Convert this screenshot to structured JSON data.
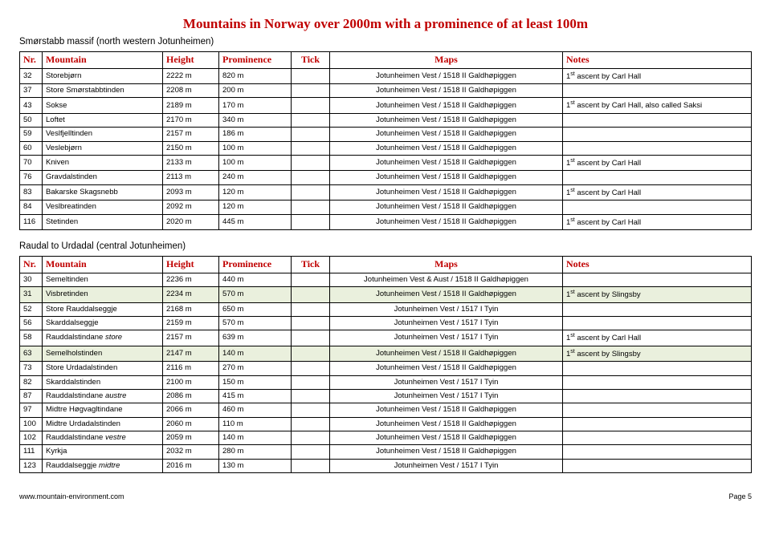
{
  "title": "Mountains in Norway over 2000m with a prominence of at least 100m",
  "sections": [
    {
      "heading": "Smørstabb massif (north western Jotunheimen)",
      "columns": [
        "Nr.",
        "Mountain",
        "Height",
        "Prominence",
        "Tick",
        "Maps",
        "Notes"
      ],
      "rows": [
        {
          "nr": "32",
          "mt": "Storebjørn",
          "ht": "2222 m",
          "pr": "820 m",
          "mp": "Jotunheimen Vest / 1518 II Galdhøpiggen",
          "nt": "1st ascent by Carl Hall"
        },
        {
          "nr": "37",
          "mt": "Store Smørstabbtinden",
          "ht": "2208 m",
          "pr": "200 m",
          "mp": "Jotunheimen Vest / 1518 II Galdhøpiggen",
          "nt": ""
        },
        {
          "nr": "43",
          "mt": "Sokse",
          "ht": "2189 m",
          "pr": "170 m",
          "mp": "Jotunheimen Vest / 1518 II Galdhøpiggen",
          "nt": "1st ascent by Carl Hall, also called Saksi"
        },
        {
          "nr": "50",
          "mt": "Loftet",
          "ht": "2170 m",
          "pr": "340 m",
          "mp": "Jotunheimen Vest / 1518 II Galdhøpiggen",
          "nt": ""
        },
        {
          "nr": "59",
          "mt": "Veslfjelltinden",
          "ht": "2157 m",
          "pr": "186 m",
          "mp": "Jotunheimen Vest / 1518 II Galdhøpiggen",
          "nt": ""
        },
        {
          "nr": "60",
          "mt": "Veslebjørn",
          "ht": "2150 m",
          "pr": "100 m",
          "mp": "Jotunheimen Vest / 1518 II Galdhøpiggen",
          "nt": ""
        },
        {
          "nr": "70",
          "mt": "Kniven",
          "ht": "2133 m",
          "pr": "100 m",
          "mp": "Jotunheimen Vest / 1518 II Galdhøpiggen",
          "nt": "1st ascent by Carl Hall"
        },
        {
          "nr": "76",
          "mt": "Gravdalstinden",
          "ht": "2113 m",
          "pr": "240 m",
          "mp": "Jotunheimen Vest / 1518 II Galdhøpiggen",
          "nt": ""
        },
        {
          "nr": "83",
          "mt": "Bakarske Skagsnebb",
          "ht": "2093 m",
          "pr": "120 m",
          "mp": "Jotunheimen Vest / 1518 II Galdhøpiggen",
          "nt": "1st ascent by Carl Hall"
        },
        {
          "nr": "84",
          "mt": "Veslbreatinden",
          "ht": "2092 m",
          "pr": "120 m",
          "mp": "Jotunheimen Vest / 1518 II Galdhøpiggen",
          "nt": ""
        },
        {
          "nr": "116",
          "mt": "Stetinden",
          "ht": "2020 m",
          "pr": "445 m",
          "mp": "Jotunheimen Vest / 1518 II Galdhøpiggen",
          "nt": "1st ascent by Carl Hall"
        }
      ]
    },
    {
      "heading": "Raudal to Urdadal  (central Jotunheimen)",
      "columns": [
        "Nr.",
        "Mountain",
        "Height",
        "Prominence",
        "Tick",
        "Maps",
        "Notes"
      ],
      "rows": [
        {
          "nr": "30",
          "mt": "Semeltinden",
          "ht": "2236 m",
          "pr": "440 m",
          "mp": "Jotunheimen Vest & Aust / 1518 II Galdhøpiggen",
          "nt": ""
        },
        {
          "nr": "31",
          "mt": "Visbretinden",
          "ht": "2234 m",
          "pr": "570 m",
          "mp": "Jotunheimen Vest / 1518 II Galdhøpiggen",
          "nt": "1st ascent by Slingsby",
          "shade": true
        },
        {
          "nr": "52",
          "mt": "Store Rauddalseggje",
          "ht": "2168 m",
          "pr": "650 m",
          "mp": "Jotunheimen Vest / 1517 I Tyin",
          "nt": ""
        },
        {
          "nr": "56",
          "mt": "Skarddalseggje",
          "ht": "2159 m",
          "pr": "570 m",
          "mp": "Jotunheimen Vest / 1517 I Tyin",
          "nt": ""
        },
        {
          "nr": "58",
          "mt": "Rauddalstindane store",
          "ht": "2157 m",
          "pr": "639 m",
          "mp": "Jotunheimen Vest / 1517 I Tyin",
          "nt": "1st ascent by Carl Hall",
          "mt_ital_last": true
        },
        {
          "nr": "63",
          "mt": "Semelholstinden",
          "ht": "2147 m",
          "pr": "140 m",
          "mp": "Jotunheimen Vest / 1518 II Galdhøpiggen",
          "nt": "1st ascent by Slingsby",
          "shade": true
        },
        {
          "nr": "73",
          "mt": "Store Urdadalstinden",
          "ht": "2116 m",
          "pr": "270 m",
          "mp": "Jotunheimen Vest / 1518 II Galdhøpiggen",
          "nt": ""
        },
        {
          "nr": "82",
          "mt": "Skarddalstinden",
          "ht": "2100 m",
          "pr": "150 m",
          "mp": "Jotunheimen Vest / 1517 I Tyin",
          "nt": ""
        },
        {
          "nr": "87",
          "mt": "Rauddalstindane austre",
          "ht": "2086 m",
          "pr": "415 m",
          "mp": "Jotunheimen Vest / 1517 I Tyin",
          "nt": "",
          "mt_ital_last": true
        },
        {
          "nr": "97",
          "mt": "Midtre Høgvagltindane",
          "ht": "2066 m",
          "pr": "460 m",
          "mp": "Jotunheimen Vest / 1518 II Galdhøpiggen",
          "nt": ""
        },
        {
          "nr": "100",
          "mt": "Midtre Urdadalstinden",
          "ht": "2060 m",
          "pr": "110 m",
          "mp": "Jotunheimen Vest / 1518 II Galdhøpiggen",
          "nt": ""
        },
        {
          "nr": "102",
          "mt": "Rauddalstindane vestre",
          "ht": "2059 m",
          "pr": "140 m",
          "mp": "Jotunheimen Vest / 1518 II Galdhøpiggen",
          "nt": "",
          "mt_ital_last": true
        },
        {
          "nr": "111",
          "mt": "Kyrkja",
          "ht": "2032 m",
          "pr": "280 m",
          "mp": "Jotunheimen Vest / 1518 II Galdhøpiggen",
          "nt": ""
        },
        {
          "nr": "123",
          "mt": "Rauddalseggje midtre",
          "ht": "2016 m",
          "pr": "130 m",
          "mp": "Jotunheimen Vest / 1517 I Tyin",
          "nt": "",
          "mt_ital_last": true
        }
      ]
    }
  ],
  "footer": {
    "left": "www.mountain-environment.com",
    "right": "Page 5"
  }
}
